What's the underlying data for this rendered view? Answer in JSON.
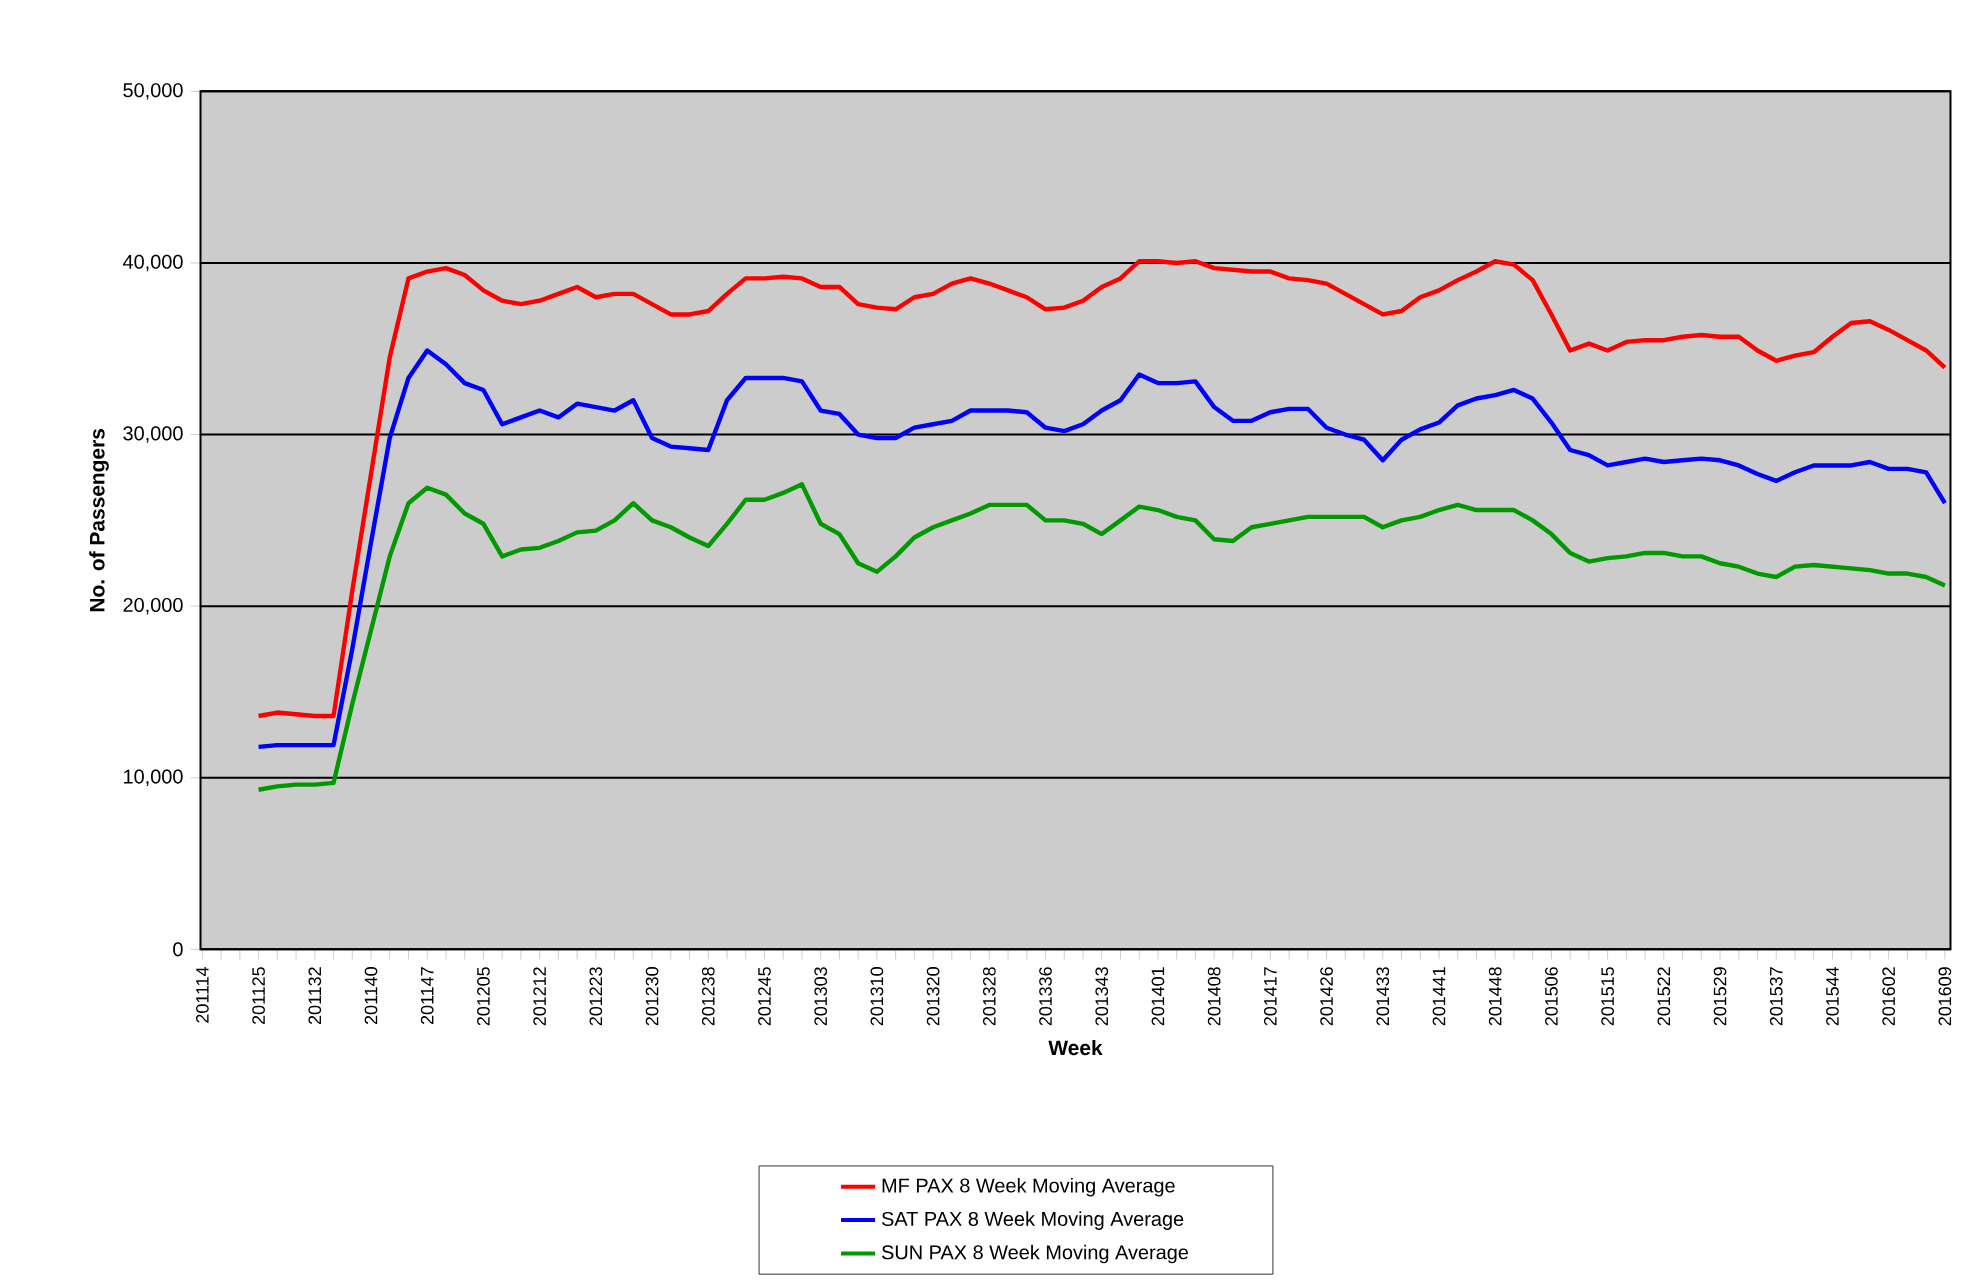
{
  "chart_data": {
    "type": "line",
    "xlabel": "Week",
    "ylabel": "No. of Passengers",
    "categories": [
      "201114",
      null,
      null,
      "201125",
      null,
      null,
      "201132",
      null,
      null,
      "201140",
      null,
      null,
      "201147",
      null,
      null,
      "201205",
      null,
      null,
      "201212",
      null,
      null,
      "201223",
      null,
      null,
      "201230",
      null,
      null,
      "201238",
      null,
      null,
      "201245",
      null,
      null,
      "201303",
      null,
      null,
      "201310",
      null,
      null,
      "201320",
      null,
      null,
      "201328",
      null,
      null,
      "201336",
      null,
      null,
      "201343",
      null,
      null,
      "201401",
      null,
      null,
      "201408",
      null,
      null,
      "201417",
      null,
      null,
      "201426",
      null,
      null,
      "201433",
      null,
      null,
      "201441",
      null,
      null,
      "201448",
      null,
      null,
      "201506",
      null,
      null,
      "201515",
      null,
      null,
      "201522",
      null,
      null,
      "201529",
      null,
      null,
      "201537",
      null,
      null,
      "201544",
      null,
      null,
      "201602",
      null,
      null,
      "201609"
    ],
    "series": [
      {
        "name": "MF PAX 8 Week Moving Average",
        "color": "#ff0000",
        "values": [
          null,
          null,
          null,
          13600,
          13800,
          13700,
          13600,
          13600,
          20900,
          27700,
          34500,
          39100,
          39500,
          39700,
          39300,
          38400,
          37800,
          37600,
          37800,
          38200,
          38600,
          38000,
          38200,
          38200,
          37600,
          37000,
          37000,
          37200,
          38200,
          39100,
          39100,
          39200,
          39100,
          38600,
          38600,
          37600,
          37400,
          37300,
          38000,
          38200,
          38800,
          39100,
          38800,
          38400,
          38000,
          37300,
          37400,
          37800,
          38600,
          39100,
          40100,
          40100,
          40000,
          40100,
          39700,
          39600,
          39500,
          39500,
          39100,
          39000,
          38800,
          38200,
          37600,
          37000,
          37200,
          38000,
          38400,
          39000,
          39500,
          40100,
          39900,
          39000,
          37000,
          34900,
          35300,
          34900,
          35400,
          35500,
          35500,
          35700,
          35800,
          35700,
          35700,
          34900,
          34300,
          34600,
          34800,
          35700,
          36500,
          36600,
          36100,
          35500,
          34900,
          33900
        ]
      },
      {
        "name": "SAT PAX 8 Week Moving Average",
        "color": "#0000ff",
        "values": [
          null,
          null,
          null,
          11800,
          11900,
          11900,
          11900,
          11900,
          17500,
          23700,
          29800,
          33300,
          34900,
          34100,
          33000,
          32600,
          30600,
          31000,
          31400,
          31000,
          31800,
          31600,
          31400,
          32000,
          29800,
          29300,
          29200,
          29100,
          32000,
          33300,
          33300,
          33300,
          33100,
          31400,
          31200,
          30000,
          29800,
          29800,
          30400,
          30600,
          30800,
          31400,
          31400,
          31400,
          31300,
          30400,
          30200,
          30600,
          31400,
          32000,
          33500,
          33000,
          33000,
          33100,
          31600,
          30800,
          30800,
          31300,
          31500,
          31500,
          30400,
          30000,
          29700,
          28500,
          29700,
          30300,
          30700,
          31700,
          32100,
          32300,
          32600,
          32100,
          30700,
          29100,
          28800,
          28200,
          28400,
          28600,
          28400,
          28500,
          28600,
          28500,
          28200,
          27700,
          27300,
          27800,
          28200,
          28200,
          28200,
          28400,
          28000,
          28000,
          27800,
          26000
        ]
      },
      {
        "name": "SUN PAX 8 Week Moving Average",
        "color": "#009900",
        "values": [
          null,
          null,
          null,
          9300,
          9500,
          9600,
          9600,
          9700,
          14300,
          18600,
          22900,
          26000,
          26900,
          26500,
          25400,
          24800,
          22900,
          23300,
          23400,
          23800,
          24300,
          24400,
          25000,
          26000,
          25000,
          24600,
          24000,
          23500,
          24800,
          26200,
          26200,
          26600,
          27100,
          24800,
          24200,
          22500,
          22000,
          22900,
          24000,
          24600,
          25000,
          25400,
          25900,
          25900,
          25900,
          25000,
          25000,
          24800,
          24200,
          25000,
          25800,
          25600,
          25200,
          25000,
          23900,
          23800,
          24600,
          24800,
          25000,
          25200,
          25200,
          25200,
          25200,
          24600,
          25000,
          25200,
          25600,
          25900,
          25600,
          25600,
          25600,
          25000,
          24200,
          23100,
          22600,
          22800,
          22900,
          23100,
          23100,
          22900,
          22900,
          22500,
          22300,
          21900,
          21700,
          22300,
          22400,
          22300,
          22200,
          22100,
          21900,
          21900,
          21700,
          21200
        ]
      }
    ],
    "ylim": [
      0,
      50000
    ],
    "yticks": [
      0,
      {
        "value": 10000,
        "label": "10,000"
      },
      {
        "value": 20000,
        "label": "20,000"
      },
      {
        "value": 30000,
        "label": "30,000"
      },
      {
        "value": 40000,
        "label": "40,000"
      },
      {
        "value": 50000,
        "label": "50,000"
      }
    ],
    "grid": "y",
    "legend": "bottom"
  }
}
